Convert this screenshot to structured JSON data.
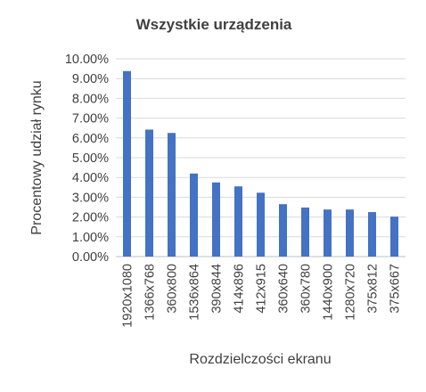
{
  "chart_data": {
    "type": "bar",
    "title": "Wszystkie urządzenia",
    "xlabel": "Rozdzielczości ekranu",
    "ylabel": "Procentowy udział rynku",
    "categories": [
      "1920x1080",
      "1366x768",
      "360x800",
      "1536x864",
      "390x844",
      "414x896",
      "412x915",
      "360x640",
      "360x780",
      "1440x900",
      "1280x720",
      "375x812",
      "375x667"
    ],
    "values": [
      9.38,
      6.42,
      6.25,
      4.2,
      3.75,
      3.55,
      3.23,
      2.65,
      2.48,
      2.38,
      2.38,
      2.25,
      2.02
    ],
    "yticks": [
      "0.00%",
      "1.00%",
      "2.00%",
      "3.00%",
      "4.00%",
      "5.00%",
      "6.00%",
      "7.00%",
      "8.00%",
      "9.00%",
      "10.00%"
    ],
    "ylim": [
      0,
      10
    ],
    "grid": true,
    "legend": "none",
    "colors": {
      "bar": "#4472c4",
      "grid": "#d9d9d9",
      "text": "#404040"
    }
  }
}
